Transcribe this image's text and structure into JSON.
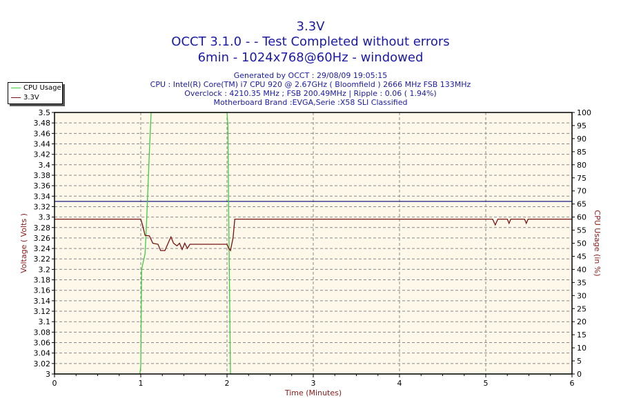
{
  "chart_data": {
    "type": "line",
    "title": "3.3V",
    "subtitle_lines": [
      "OCCT 3.1.0 -  - Test Completed without errors",
      "6min - 1024x768@60Hz - windowed"
    ],
    "info_lines": [
      "Generated by OCCT : 29/08/09 19:05:15",
      "CPU : Intel(R) Core(TM) i7 CPU 920 @ 2.67GHz ( Bloomfield ) 2666 MHz FSB 133MHz",
      "Overclock : 4210.35 MHz ; FSB 200.49MHz | Ripple : 0.06 ( 1.94%)",
      "Motherboard Brand :EVGA,Serie :X58 SLI Classified"
    ],
    "xlabel": "Time (Minutes)",
    "ylabel": "Voltage ( Volts )",
    "y2label": "CPU Usage (in %)",
    "xlim": [
      0,
      6
    ],
    "ylim": [
      3.0,
      3.5
    ],
    "y2lim": [
      0,
      100
    ],
    "xticks": [
      "0",
      "1",
      "2",
      "3",
      "4",
      "5",
      "6"
    ],
    "yticks": [
      "3",
      "3.02",
      "3.04",
      "3.06",
      "3.08",
      "3.1",
      "3.12",
      "3.14",
      "3.16",
      "3.18",
      "3.2",
      "3.22",
      "3.24",
      "3.26",
      "3.28",
      "3.3",
      "3.32",
      "3.34",
      "3.36",
      "3.38",
      "3.4",
      "3.42",
      "3.44",
      "3.46",
      "3.48",
      "3.5"
    ],
    "y2ticks": [
      "0",
      "5",
      "10",
      "15",
      "20",
      "25",
      "30",
      "35",
      "40",
      "45",
      "50",
      "55",
      "60",
      "65",
      "70",
      "75",
      "80",
      "85",
      "90",
      "95",
      "100"
    ],
    "grid": true,
    "legend": "top-left",
    "reference_line": {
      "value": 3.33,
      "color": "#1a1a80"
    },
    "series": [
      {
        "name": "CPU Usage",
        "color": "#3ccc3c",
        "axis": "right",
        "x": [
          0,
          0.99,
          1.0,
          1.01,
          1.03,
          1.05,
          1.07,
          1.1,
          1.12,
          2.0,
          2.01,
          2.02,
          2.03,
          2.04,
          6
        ],
        "y": [
          0,
          0,
          3,
          40,
          43,
          46,
          60,
          85,
          100,
          100,
          95,
          60,
          30,
          0,
          0
        ]
      },
      {
        "name": "3.3V",
        "color": "#7a1010",
        "axis": "left",
        "x": [
          0,
          1.0,
          1.02,
          1.05,
          1.1,
          1.14,
          1.2,
          1.23,
          1.28,
          1.33,
          1.35,
          1.38,
          1.42,
          1.45,
          1.48,
          1.51,
          1.54,
          1.57,
          2.0,
          2.02,
          2.04,
          2.07,
          2.09,
          5.08,
          5.11,
          5.14,
          5.25,
          5.27,
          5.29,
          5.45,
          5.47,
          5.49,
          6
        ],
        "y": [
          3.296,
          3.296,
          3.285,
          3.265,
          3.264,
          3.25,
          3.248,
          3.236,
          3.236,
          3.255,
          3.262,
          3.25,
          3.245,
          3.25,
          3.238,
          3.25,
          3.24,
          3.248,
          3.248,
          3.24,
          3.236,
          3.26,
          3.296,
          3.296,
          3.285,
          3.296,
          3.296,
          3.288,
          3.296,
          3.296,
          3.288,
          3.296,
          3.296
        ]
      }
    ]
  }
}
